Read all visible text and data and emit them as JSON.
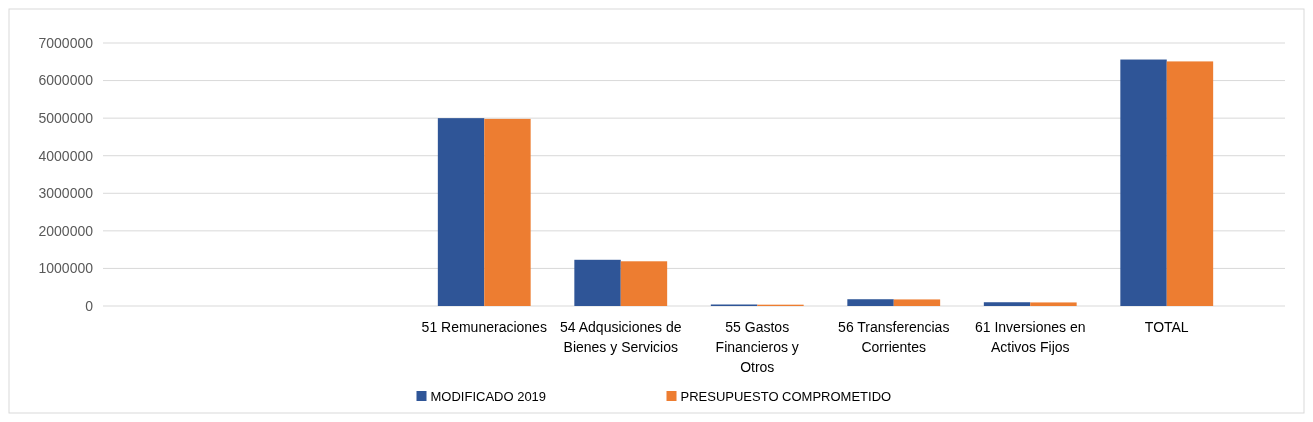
{
  "chart_data": {
    "type": "bar",
    "categories": [
      null,
      null,
      "51 Remuneraciones",
      "54 Adqusiciones de Bienes y Servicios",
      "55 Gastos Financieros y Otros",
      "56 Transferencias Corrientes",
      "61 Inversiones en Activos Fijos",
      "TOTAL"
    ],
    "series": [
      {
        "name": "MODIFICADO 2019",
        "color": "#2f5597",
        "values": [
          null,
          null,
          5000000,
          1230000,
          40000,
          180000,
          100000,
          6560000
        ]
      },
      {
        "name": "PRESUPUESTO COMPROMETIDO",
        "color": "#ed7d31",
        "values": [
          null,
          null,
          4980000,
          1190000,
          35000,
          175000,
          95000,
          6510000
        ]
      }
    ],
    "ylim": [
      0,
      7000000
    ],
    "yticks": [
      0,
      1000000,
      2000000,
      3000000,
      4000000,
      5000000,
      6000000,
      7000000
    ],
    "grid": "y",
    "legend": "bottom"
  }
}
